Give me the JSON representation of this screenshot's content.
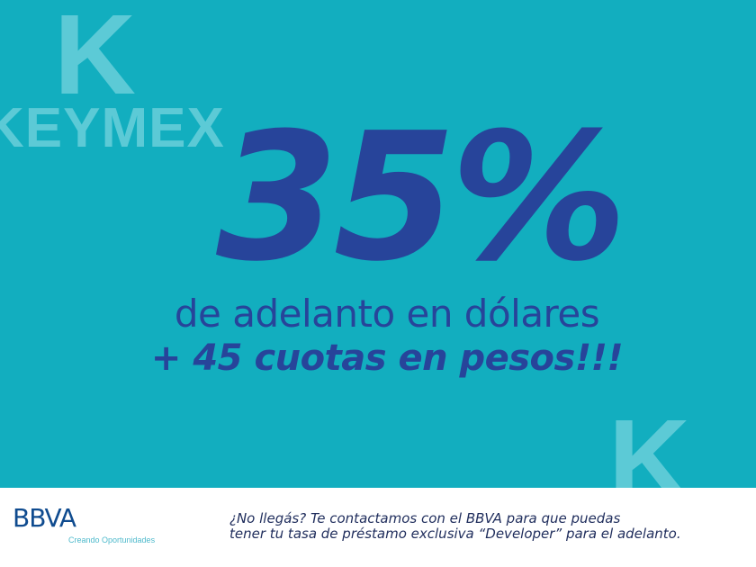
{
  "brand": {
    "logo_letter": "K",
    "logo_text": "KEYMEX"
  },
  "promo": {
    "headline": "35%",
    "line1": "de adelanto en dólares",
    "line2": "+ 45 cuotas en pesos!!!"
  },
  "footer": {
    "bank_logo": "BBVA",
    "bank_slogan": "Creando Oportunidades",
    "message_line1": "¿No llegás? Te contactamos con el BBVA para que puedas",
    "message_line2": "tener tu tasa de préstamo exclusiva “Developer” para el adelanto."
  },
  "colors": {
    "background": "#12aebf",
    "logo": "#5ccad6",
    "text": "#27449a",
    "bank": "#0f4b8f"
  }
}
